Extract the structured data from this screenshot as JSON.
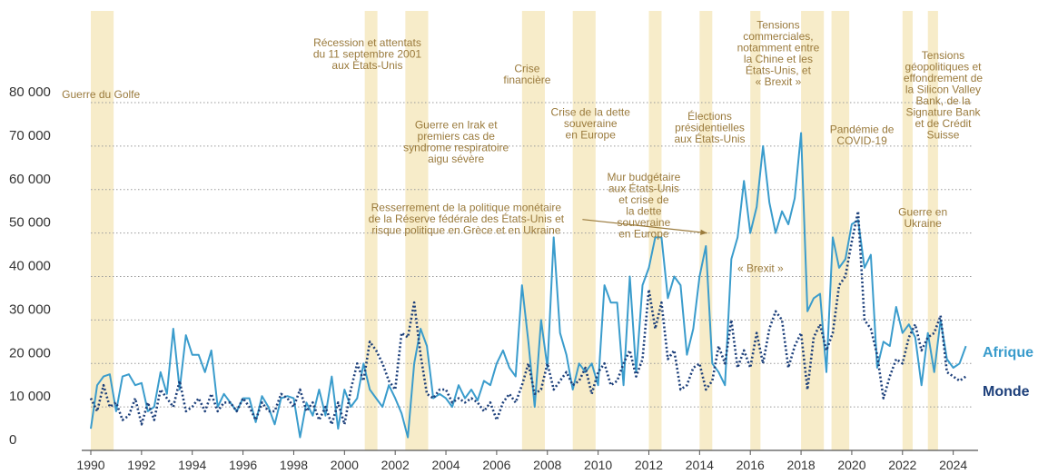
{
  "chart_data": {
    "type": "line",
    "title": "",
    "xlabel": "",
    "ylabel": "",
    "xlim": [
      1990,
      2024.8
    ],
    "ylim": [
      0,
      80000
    ],
    "grid": "horizontal-dotted",
    "y_ticks": [
      0,
      10000,
      20000,
      30000,
      40000,
      50000,
      60000,
      70000,
      80000
    ],
    "y_tick_labels": [
      "0",
      "10 000",
      "20 000",
      "30 000",
      "40 000",
      "50 000",
      "60 000",
      "70 000",
      "80 000"
    ],
    "x_ticks": [
      1990,
      1992,
      1994,
      1996,
      1998,
      2000,
      2002,
      2004,
      2006,
      2008,
      2010,
      2012,
      2014,
      2016,
      2018,
      2020,
      2022,
      2024
    ],
    "x_tick_labels": [
      "1990",
      "1992",
      "1994",
      "1996",
      "1998",
      "2000",
      "2002",
      "2004",
      "2006",
      "2008",
      "2010",
      "2012",
      "2014",
      "2016",
      "2018",
      "2020",
      "2022",
      "2024"
    ],
    "colors": {
      "afrique": "#3a9ccc",
      "monde": "#1c3f7a",
      "band": "#f7ecc9",
      "annotation": "#9a7a3c"
    },
    "shaded_periods": [
      [
        1990.0,
        1990.9
      ],
      [
        2000.8,
        2001.3
      ],
      [
        2002.4,
        2003.3
      ],
      [
        2007.0,
        2007.9
      ],
      [
        2009.0,
        2009.9
      ],
      [
        2012.0,
        2012.5
      ],
      [
        2014.0,
        2014.5
      ],
      [
        2016.0,
        2016.4
      ],
      [
        2018.0,
        2018.9
      ],
      [
        2019.2,
        2019.9
      ],
      [
        2022.0,
        2022.4
      ],
      [
        2023.0,
        2023.4
      ]
    ],
    "annotations": [
      {
        "x": 1990.4,
        "y": 81000,
        "lines": [
          "Guerre du Golfe"
        ]
      },
      {
        "x": 2000.9,
        "y": 93000,
        "lines": [
          "Récession et attentats",
          "du 11 septembre 2001",
          "aux États-Unis"
        ]
      },
      {
        "x": 2004.4,
        "y": 74000,
        "lines": [
          "Guerre en Irak et",
          "premiers cas de",
          "syndrome respiratoire",
          "aigu sévère"
        ]
      },
      {
        "x": 2007.2,
        "y": 87000,
        "lines": [
          "Crise",
          "financière"
        ]
      },
      {
        "x": 2009.7,
        "y": 77000,
        "lines": [
          "Crise de la dette",
          "souveraine",
          "en Europe"
        ]
      },
      {
        "x": 2011.8,
        "y": 62000,
        "lines": [
          "Mur budgétaire",
          "aux États-Unis",
          "et crise de",
          "la dette",
          "souveraine",
          "en Europe"
        ]
      },
      {
        "x": 2014.4,
        "y": 76000,
        "lines": [
          "Élections",
          "présidentielles",
          "aux États-Unis"
        ]
      },
      {
        "x": 2017.1,
        "y": 97000,
        "lines": [
          "Tensions",
          "commerciales,",
          "notamment entre",
          "la Chine et les",
          "États-Unis, et",
          "« Brexit »"
        ]
      },
      {
        "x": 2016.4,
        "y": 41000,
        "lines": [
          "« Brexit »"
        ]
      },
      {
        "x": 2020.4,
        "y": 73000,
        "lines": [
          "Pandémie de",
          "COVID-19"
        ]
      },
      {
        "x": 2022.8,
        "y": 54000,
        "lines": [
          "Guerre en",
          "Ukraine"
        ]
      },
      {
        "x": 2023.6,
        "y": 90000,
        "lines": [
          "Tensions",
          "géopolitiques et",
          "effondrement de",
          "la Silicon Valley",
          "Bank, de la",
          "Signature Bank",
          "et de Crédit",
          "Suisse"
        ]
      },
      {
        "x": 2004.8,
        "y": 55000,
        "lines": [
          "Resserrement de la politique monétaire",
          "de la Réserve fédérale des États-Unis et",
          "risque politique en Grèce et en Ukraine"
        ],
        "arrow_to": [
          2014.3,
          50000
        ]
      }
    ],
    "x": [
      1990.0,
      1990.25,
      1990.5,
      1990.75,
      1991.0,
      1991.25,
      1991.5,
      1991.75,
      1992.0,
      1992.25,
      1992.5,
      1992.75,
      1993.0,
      1993.25,
      1993.5,
      1993.75,
      1994.0,
      1994.25,
      1994.5,
      1994.75,
      1995.0,
      1995.25,
      1995.5,
      1995.75,
      1996.0,
      1996.25,
      1996.5,
      1996.75,
      1997.0,
      1997.25,
      1997.5,
      1997.75,
      1998.0,
      1998.25,
      1998.5,
      1998.75,
      1999.0,
      1999.25,
      1999.5,
      1999.75,
      2000.0,
      2000.25,
      2000.5,
      2000.75,
      2001.0,
      2001.25,
      2001.5,
      2001.75,
      2002.0,
      2002.25,
      2002.5,
      2002.75,
      2003.0,
      2003.25,
      2003.5,
      2003.75,
      2004.0,
      2004.25,
      2004.5,
      2004.75,
      2005.0,
      2005.25,
      2005.5,
      2005.75,
      2006.0,
      2006.25,
      2006.5,
      2006.75,
      2007.0,
      2007.25,
      2007.5,
      2007.75,
      2008.0,
      2008.25,
      2008.5,
      2008.75,
      2009.0,
      2009.25,
      2009.5,
      2009.75,
      2010.0,
      2010.25,
      2010.5,
      2010.75,
      2011.0,
      2011.25,
      2011.5,
      2011.75,
      2012.0,
      2012.25,
      2012.5,
      2012.75,
      2013.0,
      2013.25,
      2013.5,
      2013.75,
      2014.0,
      2014.25,
      2014.5,
      2014.75,
      2015.0,
      2015.25,
      2015.5,
      2015.75,
      2016.0,
      2016.25,
      2016.5,
      2016.75,
      2017.0,
      2017.25,
      2017.5,
      2017.75,
      2018.0,
      2018.25,
      2018.5,
      2018.75,
      2019.0,
      2019.25,
      2019.5,
      2019.75,
      2020.0,
      2020.25,
      2020.5,
      2020.75,
      2021.0,
      2021.25,
      2021.5,
      2021.75,
      2022.0,
      2022.25,
      2022.5,
      2022.75,
      2023.0,
      2023.25,
      2023.5,
      2023.75,
      2024.0,
      2024.25,
      2024.5
    ],
    "series": [
      {
        "name": "Afrique",
        "values": [
          5000,
          15000,
          17000,
          17500,
          9000,
          17000,
          17500,
          15000,
          15500,
          9000,
          10000,
          18000,
          13000,
          28000,
          14000,
          26500,
          22000,
          22000,
          18000,
          23000,
          10000,
          13000,
          11000,
          9000,
          12000,
          12000,
          6500,
          12500,
          10000,
          6000,
          12000,
          12500,
          12000,
          3000,
          11000,
          8000,
          14000,
          8000,
          17000,
          5000,
          14000,
          10000,
          12000,
          20000,
          14000,
          12000,
          10000,
          15000,
          12000,
          8500,
          3000,
          20000,
          28000,
          24000,
          12000,
          13000,
          12000,
          10000,
          15000,
          12000,
          14000,
          11500,
          16000,
          15000,
          20000,
          23000,
          19000,
          17000,
          38000,
          25000,
          10000,
          30000,
          19000,
          49000,
          27000,
          22000,
          14000,
          20000,
          18000,
          20000,
          15000,
          38000,
          34000,
          34000,
          15000,
          40000,
          18000,
          38000,
          42000,
          49000,
          49000,
          35000,
          40000,
          38000,
          22000,
          28000,
          40000,
          47000,
          20000,
          18000,
          15000,
          44000,
          49000,
          62000,
          50000,
          56000,
          70000,
          57000,
          50000,
          55000,
          52000,
          58000,
          73000,
          32000,
          35000,
          36000,
          18000,
          49000,
          42000,
          44000,
          52000,
          53000,
          42000,
          45000,
          19000,
          25000,
          24000,
          33000,
          27000,
          29000,
          26000,
          15000,
          27000,
          18000,
          30000,
          21000,
          19000,
          20000,
          24000
        ]
      },
      {
        "name": "Monde",
        "values": [
          12000,
          9000,
          15000,
          10000,
          11000,
          7000,
          8000,
          12000,
          6000,
          11000,
          7000,
          14000,
          12000,
          10000,
          16000,
          9000,
          10000,
          12000,
          9000,
          13000,
          9000,
          11000,
          11000,
          9000,
          12000,
          10000,
          7000,
          11000,
          9000,
          9000,
          13000,
          12000,
          10000,
          14000,
          9000,
          11000,
          7000,
          10000,
          6000,
          11000,
          6000,
          14000,
          20000,
          16000,
          25000,
          23000,
          20000,
          16000,
          14000,
          27000,
          26000,
          34000,
          22000,
          13000,
          12000,
          14000,
          14000,
          11000,
          12000,
          11000,
          12000,
          11000,
          9000,
          11000,
          7000,
          11000,
          13000,
          11000,
          15000,
          20000,
          13000,
          14000,
          20000,
          14000,
          16000,
          18000,
          15000,
          16000,
          19000,
          13000,
          18000,
          20000,
          15000,
          16000,
          20000,
          23000,
          17000,
          21000,
          37000,
          28000,
          34000,
          21000,
          23000,
          14000,
          15000,
          19000,
          20000,
          14000,
          16000,
          24000,
          20000,
          30000,
          19000,
          23000,
          19000,
          27000,
          20000,
          28000,
          32000,
          30000,
          19000,
          24000,
          27000,
          14000,
          26000,
          29000,
          23000,
          27000,
          38000,
          40000,
          48000,
          55000,
          30000,
          28000,
          22000,
          12000,
          17000,
          21000,
          20000,
          26000,
          29000,
          23000,
          26000,
          27000,
          31000,
          18000,
          17000,
          16000,
          17000
        ]
      }
    ],
    "end_labels": [
      {
        "text": "Afrique",
        "y": 21500
      },
      {
        "text": "Monde",
        "y": 12500
      }
    ]
  }
}
